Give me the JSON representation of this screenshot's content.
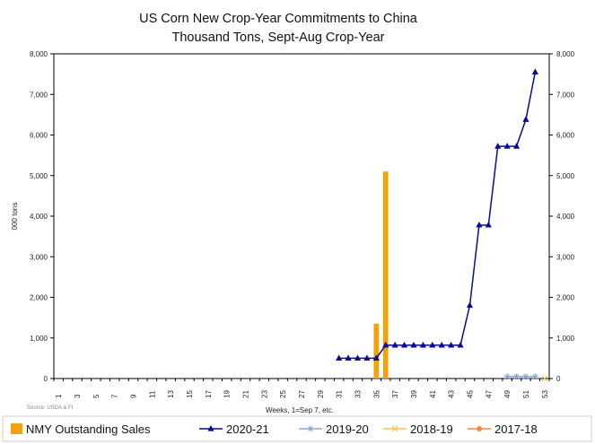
{
  "chart_data": {
    "type": "bar+line",
    "title_line1": "US Corn New Crop-Year Commitments to China",
    "title_line2": "Thousand Tons, Sept-Aug Crop-Year",
    "xlabel": "Weeks, 1=Sep 7, etc.",
    "ylabel": "000 tons",
    "source": "Source: USDA & FI",
    "ylim": [
      0,
      8000
    ],
    "y_ticks": [
      "0",
      "1,000",
      "2,000",
      "3,000",
      "4,000",
      "5,000",
      "6,000",
      "7,000",
      "8,000"
    ],
    "y_tick_values": [
      0,
      1000,
      2000,
      3000,
      4000,
      5000,
      6000,
      7000,
      8000
    ],
    "x_ticks": [
      "1",
      "3",
      "5",
      "7",
      "9",
      "11",
      "13",
      "15",
      "17",
      "19",
      "21",
      "23",
      "25",
      "27",
      "29",
      "31",
      "33",
      "35",
      "37",
      "39",
      "41",
      "43",
      "45",
      "47",
      "49",
      "51",
      "53"
    ],
    "weeks": 53,
    "bars": {
      "name": "NMY Outstanding Sales",
      "color": "#f5a10a",
      "points": [
        {
          "week": 35,
          "value": 1350
        },
        {
          "week": 36,
          "value": 5100
        }
      ]
    },
    "series": [
      {
        "name": "2020-21",
        "color": "#0a0a9a",
        "marker": "triangle",
        "points": [
          [
            31,
            500
          ],
          [
            32,
            500
          ],
          [
            33,
            500
          ],
          [
            34,
            500
          ],
          [
            35,
            500
          ],
          [
            36,
            820
          ],
          [
            37,
            820
          ],
          [
            38,
            820
          ],
          [
            39,
            820
          ],
          [
            40,
            820
          ],
          [
            41,
            820
          ],
          [
            42,
            820
          ],
          [
            43,
            820
          ],
          [
            44,
            820
          ],
          [
            45,
            1800
          ],
          [
            46,
            3780
          ],
          [
            47,
            3780
          ],
          [
            48,
            5720
          ],
          [
            49,
            5720
          ],
          [
            50,
            5720
          ],
          [
            51,
            6380
          ],
          [
            52,
            7550
          ]
        ]
      },
      {
        "name": "2019-20",
        "color": "#8aa9d6",
        "marker": "star",
        "points": [
          [
            49,
            50
          ],
          [
            50,
            50
          ],
          [
            51,
            50
          ],
          [
            52,
            50
          ]
        ]
      },
      {
        "name": "2018-19",
        "color": "#f2c24a",
        "marker": "x",
        "points": [
          [
            53,
            0
          ]
        ]
      },
      {
        "name": "2017-18",
        "color": "#f08a4a",
        "marker": "dot",
        "points": []
      }
    ],
    "legend_position": "bottom"
  }
}
